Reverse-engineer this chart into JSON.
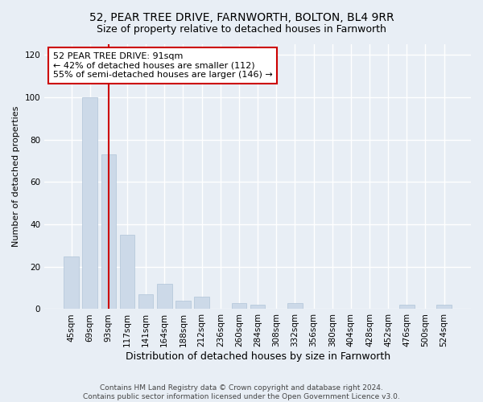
{
  "title": "52, PEAR TREE DRIVE, FARNWORTH, BOLTON, BL4 9RR",
  "subtitle": "Size of property relative to detached houses in Farnworth",
  "xlabel": "Distribution of detached houses by size in Farnworth",
  "ylabel": "Number of detached properties",
  "categories": [
    "45sqm",
    "69sqm",
    "93sqm",
    "117sqm",
    "141sqm",
    "164sqm",
    "188sqm",
    "212sqm",
    "236sqm",
    "260sqm",
    "284sqm",
    "308sqm",
    "332sqm",
    "356sqm",
    "380sqm",
    "404sqm",
    "428sqm",
    "452sqm",
    "476sqm",
    "500sqm",
    "524sqm"
  ],
  "values": [
    25,
    100,
    73,
    35,
    7,
    12,
    4,
    6,
    0,
    3,
    2,
    0,
    3,
    0,
    0,
    0,
    0,
    0,
    2,
    0,
    2
  ],
  "bar_color": "#ccd9e8",
  "bar_edge_color": "#b0c4d8",
  "vline_x_index": 2,
  "vline_color": "#cc0000",
  "annotation_line1": "52 PEAR TREE DRIVE: 91sqm",
  "annotation_line2": "← 42% of detached houses are smaller (112)",
  "annotation_line3": "55% of semi-detached houses are larger (146) →",
  "annotation_box_color": "#cc0000",
  "background_color": "#e8eef5",
  "grid_color": "#ffffff",
  "ylim": [
    0,
    125
  ],
  "yticks": [
    0,
    20,
    40,
    60,
    80,
    100,
    120
  ],
  "footer_line1": "Contains HM Land Registry data © Crown copyright and database right 2024.",
  "footer_line2": "Contains public sector information licensed under the Open Government Licence v3.0.",
  "title_fontsize": 10,
  "xlabel_fontsize": 9,
  "ylabel_fontsize": 8,
  "tick_fontsize": 7.5,
  "annotation_fontsize": 8,
  "footer_fontsize": 6.5
}
